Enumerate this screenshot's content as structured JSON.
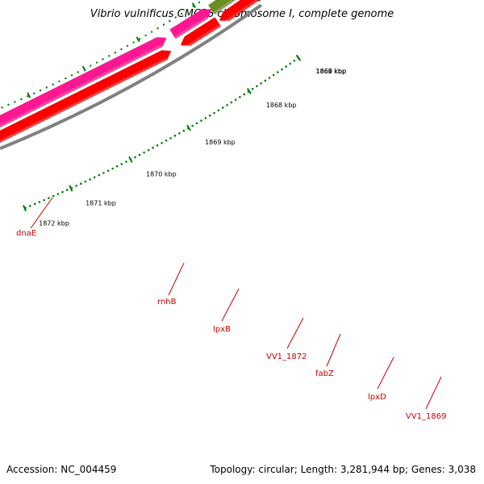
{
  "title": "Vibrio vulnificus CMCP6 chromosome I, complete genome",
  "footer": {
    "accession": "Accession: NC_004459",
    "summary": "Topology: circular; Length: 3,281,944 bp; Genes: 3,038"
  },
  "colors": {
    "backbone": "#808080",
    "cds_forward": "#ff0000",
    "cds_reverse_pink": "#ff1493",
    "cds_reverse_olive": "#6b8e23",
    "cds_purple": "#7b68ee",
    "tick": "#008000",
    "label": "#cc0000"
  },
  "kbp_labels": [
    "1872 kbp",
    "1871 kbp",
    "1870 kbp",
    "1869 kbp",
    "1868 kbp",
    "1867 kbp",
    "1866 kbp",
    "1865 kbp"
  ],
  "gene_labels": [
    "dnaE",
    "rnhB",
    "lpxB",
    "VV1_1872",
    "fabZ",
    "lpxD",
    "VV1_1869"
  ]
}
